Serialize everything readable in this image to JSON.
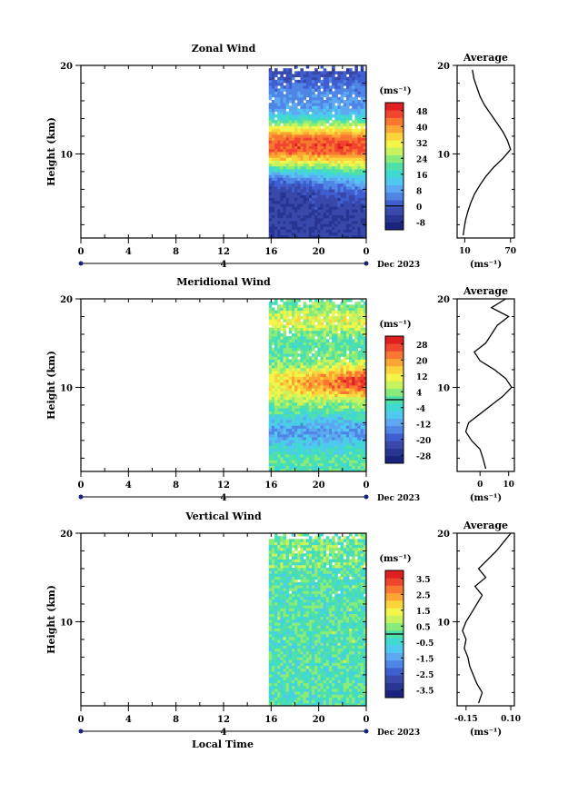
{
  "figure": {
    "xlabel": "Local Time",
    "date_label": "Dec 2023",
    "day_label": "4"
  },
  "chart_data": [
    {
      "type": "heatmap",
      "title": "Zonal Wind",
      "ylabel": "Height (km)",
      "x_ticks": [
        "0",
        "4",
        "8",
        "12",
        "16",
        "20",
        "0"
      ],
      "x_range_hours": [
        0,
        24
      ],
      "y_ticks": [
        "10",
        "20"
      ],
      "ylim": [
        0.5,
        20
      ],
      "data_x_range_hours": [
        15.8,
        24
      ],
      "colorbar": {
        "unit": "(ms⁻¹)",
        "ticks": [
          "48",
          "40",
          "32",
          "24",
          "16",
          "8",
          "0",
          "-8"
        ],
        "range": [
          -12,
          52
        ],
        "colors": [
          "#1a237e",
          "#283593",
          "#3949ab",
          "#3f5fd1",
          "#4f86e6",
          "#5ea8f2",
          "#4fc9f0",
          "#3fd9d2",
          "#4fe0a8",
          "#8aec78",
          "#c8f35e",
          "#f3f54a",
          "#fbd33c",
          "#fba534",
          "#f97730",
          "#f0452e",
          "#e02020"
        ]
      },
      "profiles_description": "time-height field of zonal wind, maximum near 10-12 km",
      "average_profile": {
        "title": "Average",
        "xlabel": "(ms⁻¹)",
        "x_ticks": [
          "10",
          "70"
        ],
        "xlim": [
          0,
          75
        ],
        "y_ticks": [
          "10",
          "20"
        ],
        "points": [
          [
            8,
            0.8
          ],
          [
            9,
            1.5
          ],
          [
            11,
            2.5
          ],
          [
            14,
            3.5
          ],
          [
            18,
            4.5
          ],
          [
            23,
            5.5
          ],
          [
            30,
            6.5
          ],
          [
            38,
            7.5
          ],
          [
            48,
            8.5
          ],
          [
            60,
            9.5
          ],
          [
            70,
            10.5
          ],
          [
            66,
            11.5
          ],
          [
            60,
            12.5
          ],
          [
            52,
            13.5
          ],
          [
            44,
            14.5
          ],
          [
            36,
            15.5
          ],
          [
            30,
            16.5
          ],
          [
            26,
            17.5
          ],
          [
            22,
            18.5
          ],
          [
            20,
            19.5
          ]
        ]
      }
    },
    {
      "type": "heatmap",
      "title": "Meridional Wind",
      "ylabel": "Height (km)",
      "x_ticks": [
        "0",
        "4",
        "8",
        "12",
        "16",
        "20",
        "0"
      ],
      "x_range_hours": [
        0,
        24
      ],
      "y_ticks": [
        "10",
        "20"
      ],
      "ylim": [
        0.5,
        20
      ],
      "data_x_range_hours": [
        15.8,
        24
      ],
      "colorbar": {
        "unit": "(ms⁻¹)",
        "ticks": [
          "28",
          "20",
          "12",
          "4",
          "-4",
          "-12",
          "-20",
          "-28"
        ],
        "range": [
          -32,
          32
        ],
        "colors": [
          "#1a237e",
          "#283593",
          "#3949ab",
          "#3f5fd1",
          "#4f86e6",
          "#5ea8f2",
          "#4fc9f0",
          "#3fd9d2",
          "#4fe0a8",
          "#8aec78",
          "#c8f35e",
          "#f3f54a",
          "#fbd33c",
          "#fba534",
          "#f97730",
          "#f0452e",
          "#e02020"
        ]
      },
      "average_profile": {
        "title": "Average",
        "xlabel": "(ms⁻¹)",
        "x_ticks": [
          "0",
          "10"
        ],
        "xlim": [
          -8,
          12
        ],
        "y_ticks": [
          "10",
          "20"
        ],
        "points": [
          [
            2,
            0.8
          ],
          [
            1,
            2
          ],
          [
            0,
            3
          ],
          [
            -3,
            4
          ],
          [
            -5,
            5
          ],
          [
            -4,
            6
          ],
          [
            0,
            7
          ],
          [
            4,
            8
          ],
          [
            8,
            9
          ],
          [
            11,
            10
          ],
          [
            9,
            11
          ],
          [
            5,
            12
          ],
          [
            0,
            13
          ],
          [
            -2,
            14
          ],
          [
            2,
            15
          ],
          [
            4,
            16
          ],
          [
            6,
            17
          ],
          [
            10,
            18
          ],
          [
            4,
            19
          ],
          [
            9,
            20
          ]
        ]
      }
    },
    {
      "type": "heatmap",
      "title": "Vertical Wind",
      "ylabel": "Height (km)",
      "x_ticks": [
        "0",
        "4",
        "8",
        "12",
        "16",
        "20",
        "0"
      ],
      "x_range_hours": [
        0,
        24
      ],
      "y_ticks": [
        "10",
        "20"
      ],
      "ylim": [
        0.5,
        20
      ],
      "data_x_range_hours": [
        15.8,
        24
      ],
      "colorbar": {
        "unit": "(ms⁻¹)",
        "ticks": [
          "3.5",
          "2.5",
          "1.5",
          "0.5",
          "-0.5",
          "-1.5",
          "-2.5",
          "-3.5"
        ],
        "range": [
          -4,
          4
        ],
        "colors": [
          "#1a237e",
          "#283593",
          "#3949ab",
          "#3f5fd1",
          "#4f86e6",
          "#5ea8f2",
          "#4fc9f0",
          "#3fd9d2",
          "#4fe0a8",
          "#8aec78",
          "#c8f35e",
          "#f3f54a",
          "#fbd33c",
          "#fba534",
          "#f97730",
          "#f0452e",
          "#e02020"
        ]
      },
      "average_profile": {
        "title": "Average",
        "xlabel": "(ms⁻¹)",
        "x_ticks": [
          "-0.15",
          "0.10"
        ],
        "xlim": [
          -0.2,
          0.12
        ],
        "y_ticks": [
          "10",
          "20"
        ],
        "points": [
          [
            -0.08,
            0.8
          ],
          [
            -0.06,
            2
          ],
          [
            -0.09,
            3
          ],
          [
            -0.11,
            4
          ],
          [
            -0.13,
            5
          ],
          [
            -0.14,
            6
          ],
          [
            -0.16,
            7
          ],
          [
            -0.15,
            8
          ],
          [
            -0.17,
            9
          ],
          [
            -0.15,
            10
          ],
          [
            -0.12,
            11
          ],
          [
            -0.09,
            12
          ],
          [
            -0.06,
            13
          ],
          [
            -0.1,
            14
          ],
          [
            -0.04,
            15
          ],
          [
            -0.08,
            16
          ],
          [
            -0.03,
            17
          ],
          [
            0.02,
            18
          ],
          [
            0.06,
            19
          ],
          [
            0.1,
            20
          ]
        ]
      }
    }
  ]
}
